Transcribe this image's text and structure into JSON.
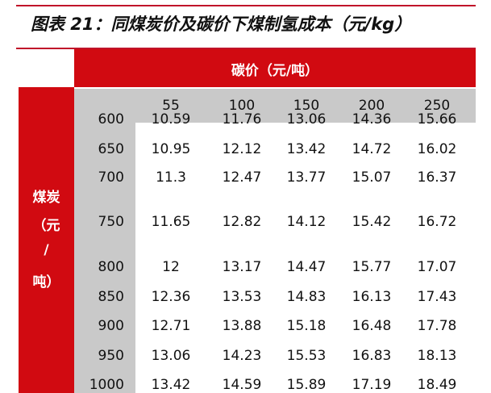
{
  "title": "图表 21：同煤炭价及碳价下煤制氢成本（元/kg）",
  "column_group_header": "碳价（元/吨）",
  "row_group_header": [
    "煤炭",
    "（元",
    "/",
    "吨）"
  ],
  "columns": [
    "55",
    "100",
    "150",
    "200",
    "250"
  ],
  "rows": [
    {
      "label": "600",
      "values": [
        "10.59",
        "11.76",
        "13.06",
        "14.36",
        "15.66"
      ]
    },
    {
      "label": "650",
      "values": [
        "10.95",
        "12.12",
        "13.42",
        "14.72",
        "16.02"
      ]
    },
    {
      "label": "700",
      "values": [
        "11.3",
        "12.47",
        "13.77",
        "15.07",
        "16.37"
      ]
    },
    {
      "label": "750",
      "values": [
        "11.65",
        "12.82",
        "14.12",
        "15.42",
        "16.72"
      ]
    },
    {
      "label": "800",
      "values": [
        "12",
        "13.17",
        "14.47",
        "15.77",
        "17.07"
      ]
    },
    {
      "label": "850",
      "values": [
        "12.36",
        "13.53",
        "14.83",
        "16.13",
        "17.43"
      ]
    },
    {
      "label": "900",
      "values": [
        "12.71",
        "13.88",
        "15.18",
        "16.48",
        "17.78"
      ]
    },
    {
      "label": "950",
      "values": [
        "13.06",
        "14.23",
        "15.53",
        "16.83",
        "18.13"
      ]
    },
    {
      "label": "1000",
      "values": [
        "13.42",
        "14.59",
        "15.89",
        "17.19",
        "18.49"
      ]
    }
  ],
  "colors": {
    "accent_red": "#d10a11",
    "header_gray": "#c9c9c9"
  }
}
